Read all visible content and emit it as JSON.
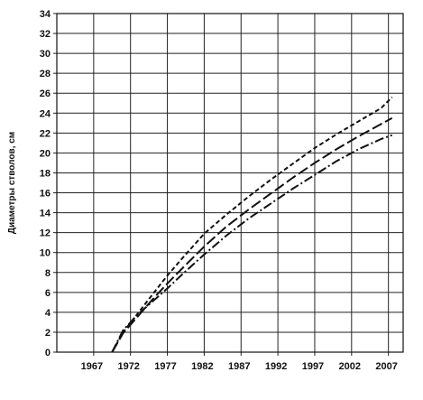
{
  "chart_data": {
    "type": "line",
    "title": "",
    "xlabel": "",
    "ylabel": "Диаметры стволов, см",
    "xlim": [
      1962,
      2009
    ],
    "ylim": [
      0,
      34
    ],
    "x_ticks": [
      "1967",
      "1972",
      "1977",
      "1982",
      "1987",
      "1992",
      "1997",
      "2002",
      "2007"
    ],
    "y_ticks": [
      "0",
      "2",
      "4",
      "6",
      "8",
      "10",
      "12",
      "14",
      "16",
      "18",
      "20",
      "22",
      "24",
      "26",
      "28",
      "30",
      "32",
      "34"
    ],
    "grid": true,
    "legend": "none",
    "series": [
      {
        "line_style": "short-dash",
        "color": "#111111",
        "x": [
          1969.5,
          1971,
          1973,
          1975,
          1977,
          1979,
          1982,
          1985,
          1988,
          1991,
          1994,
          1997,
          2000,
          2003,
          2006,
          2007.5
        ],
        "y": [
          0,
          2.0,
          3.9,
          5.8,
          7.7,
          9.4,
          11.9,
          13.8,
          15.6,
          17.3,
          18.9,
          20.5,
          21.9,
          23.2,
          24.5,
          25.6
        ]
      },
      {
        "line_style": "long-dash",
        "color": "#111111",
        "x": [
          1969.5,
          1971,
          1973,
          1975,
          1977,
          1979,
          1982,
          1985,
          1988,
          1991,
          1994,
          1997,
          2000,
          2003,
          2006,
          2007.5
        ],
        "y": [
          0,
          1.9,
          3.6,
          5.3,
          6.9,
          8.4,
          10.6,
          12.6,
          14.3,
          15.9,
          17.5,
          19.0,
          20.4,
          21.7,
          22.9,
          23.5
        ]
      },
      {
        "line_style": "dash-dot",
        "color": "#111111",
        "x": [
          1969.5,
          1971,
          1973,
          1975,
          1977,
          1979,
          1982,
          1985,
          1988,
          1991,
          1994,
          1997,
          2000,
          2003,
          2006,
          2007.5
        ],
        "y": [
          0,
          2.2,
          3.8,
          5.1,
          6.4,
          7.8,
          9.8,
          11.7,
          13.4,
          14.9,
          16.4,
          17.8,
          19.2,
          20.4,
          21.4,
          21.8
        ]
      }
    ]
  }
}
